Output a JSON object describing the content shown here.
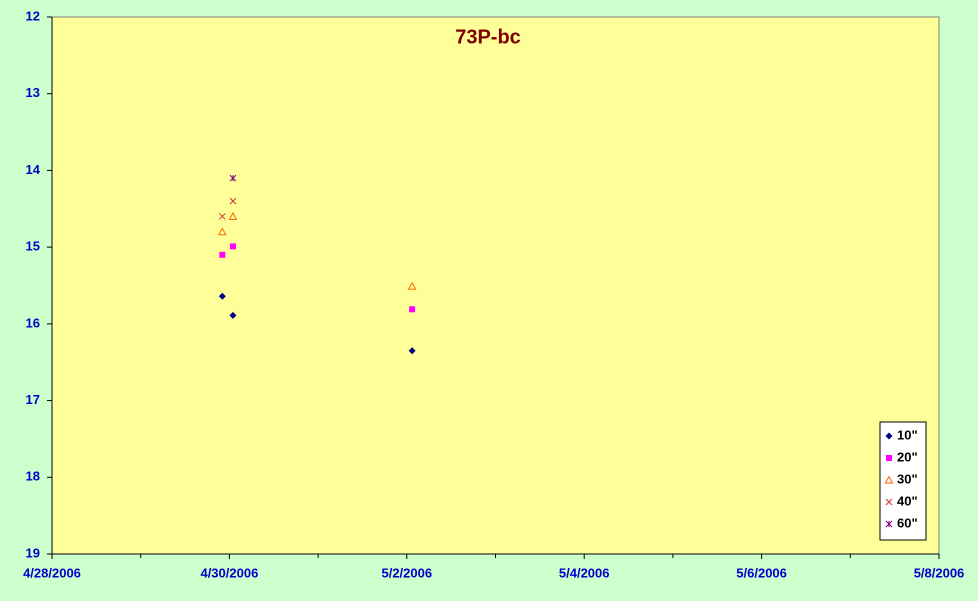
{
  "chart_data": {
    "type": "scatter",
    "title": "73P-bc",
    "xlim": [
      38835,
      38845
    ],
    "xticks": [
      {
        "value": 38835,
        "label": "4/28/2006"
      },
      {
        "value": 38837,
        "label": "4/30/2006"
      },
      {
        "value": 38839,
        "label": "5/2/2006"
      },
      {
        "value": 38841,
        "label": "5/4/2006"
      },
      {
        "value": 38843,
        "label": "5/6/2006"
      },
      {
        "value": 38845,
        "label": "5/8/2006"
      }
    ],
    "ylim": [
      12,
      19
    ],
    "yticks": [
      12,
      13,
      14,
      15,
      16,
      17,
      18,
      19
    ],
    "y_reversed": true,
    "legend": "bottom-right",
    "series": [
      {
        "name": "10\"",
        "color": "#000080",
        "marker": "diamond",
        "x": [
          38836.92,
          38837.04,
          38839.06
        ],
        "values": [
          15.64,
          15.89,
          16.35
        ]
      },
      {
        "name": "20\"",
        "color": "#ff00ff",
        "marker": "square",
        "x": [
          38836.92,
          38837.04,
          38839.06
        ],
        "values": [
          15.1,
          14.99,
          15.81
        ]
      },
      {
        "name": "30\"",
        "color": "#ff6600",
        "marker": "triangle",
        "x": [
          38836.92,
          38837.04,
          38839.06
        ],
        "values": [
          14.8,
          14.6,
          15.51
        ]
      },
      {
        "name": "40\"",
        "color": "#cc3333",
        "marker": "cross",
        "x": [
          38836.92,
          38837.04
        ],
        "values": [
          14.6,
          14.4
        ]
      },
      {
        "name": "60\"",
        "color": "#800080",
        "marker": "star",
        "x": [
          38837.04
        ],
        "values": [
          14.1
        ]
      }
    ]
  }
}
